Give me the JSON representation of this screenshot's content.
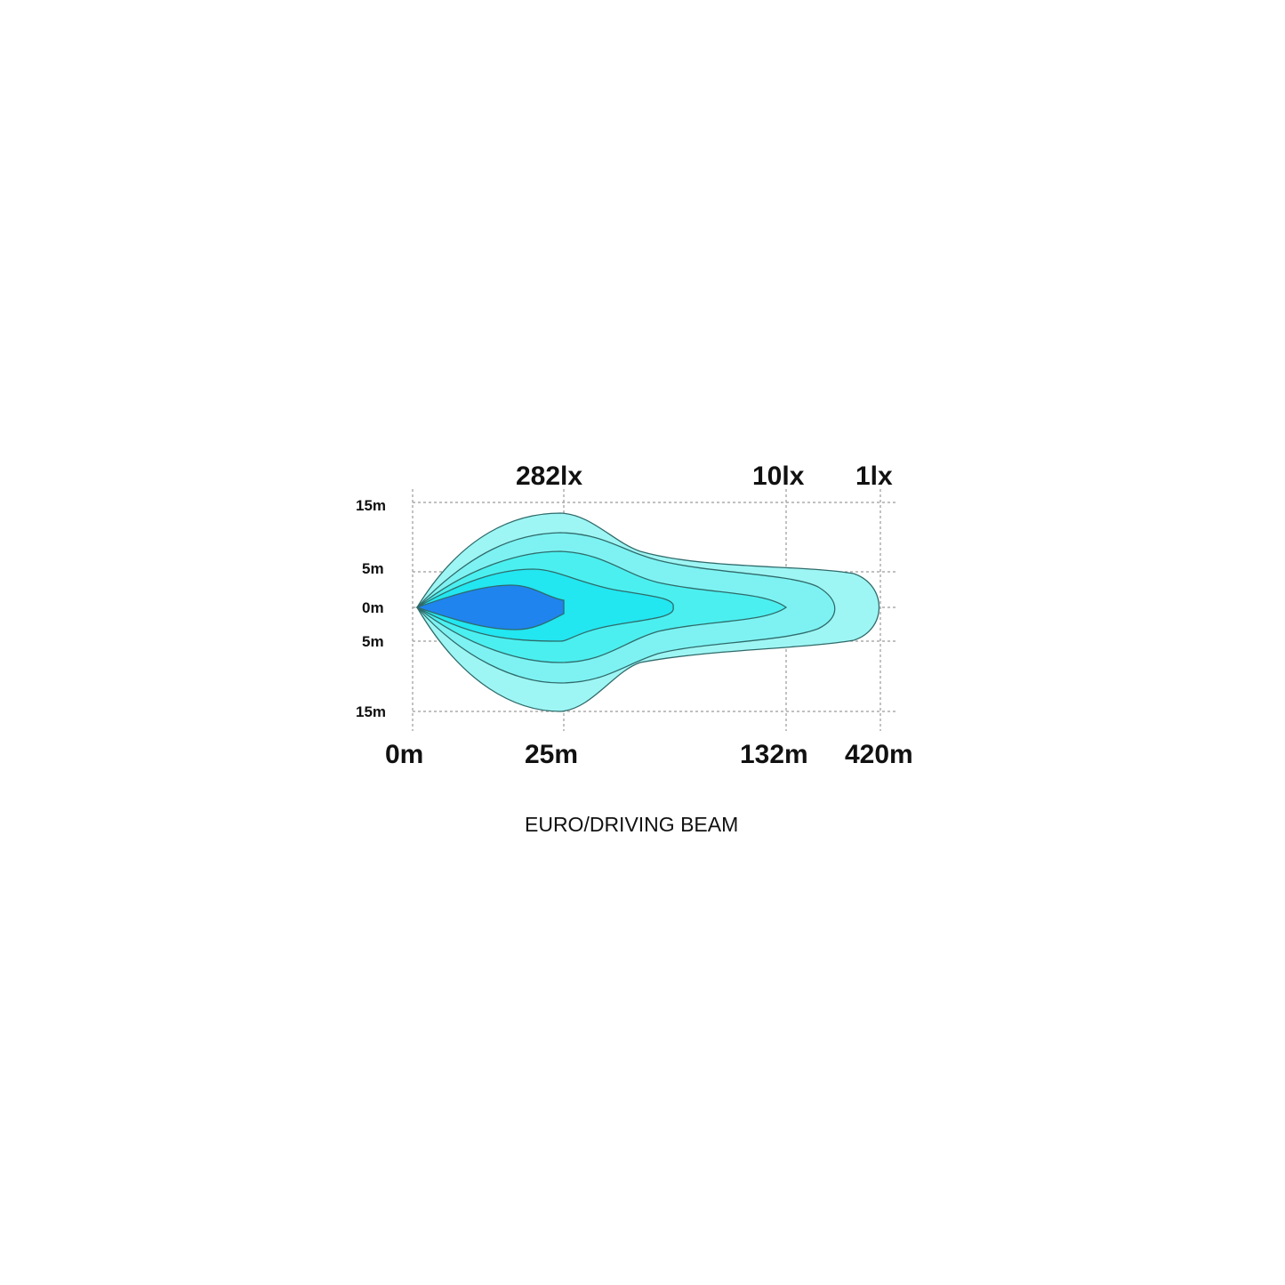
{
  "chart_data": {
    "type": "beam-pattern",
    "title": "EURO/DRIVING BEAM",
    "lux_labels": [
      "282lx",
      "10lx",
      "1lx"
    ],
    "x_ticks": [
      "0m",
      "25m",
      "132m",
      "420m"
    ],
    "y_ticks": [
      "15m",
      "5m",
      "0m",
      "5m",
      "15m"
    ],
    "grid": true,
    "colors": {
      "outer": "#9ef6f4",
      "layer2": "#7ef2f2",
      "layer3": "#4cefef",
      "layer4": "#22e6f0",
      "core": "#1f84ee",
      "outline": "#2f6b6b"
    }
  }
}
